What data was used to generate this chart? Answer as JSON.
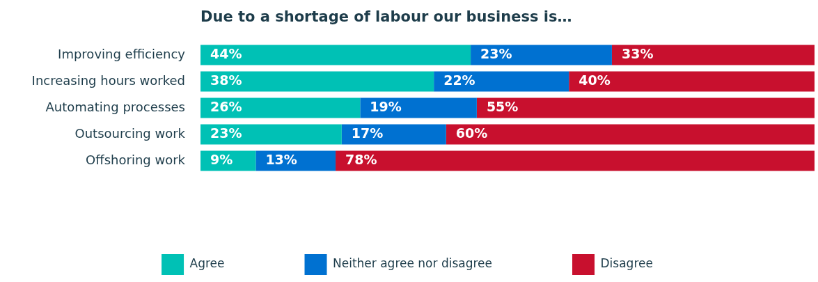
{
  "chart_data": {
    "type": "bar",
    "orientation": "horizontal",
    "stacked": true,
    "tick_labels": "y",
    "title": "Due to a shortage of labour our business is…",
    "categories": [
      "Improving efficiency",
      "Increasing hours worked",
      "Automating processes",
      "Outsourcing work",
      "Offshoring work"
    ],
    "series": [
      {
        "name": "Agree",
        "color": "#00c1b5",
        "values": [
          44,
          38,
          26,
          23,
          9
        ],
        "value_labels": [
          "44%",
          "38%",
          "26%",
          "23%",
          "9%"
        ]
      },
      {
        "name": "Neither agree nor disagree",
        "color": "#0071d1",
        "values": [
          23,
          22,
          19,
          17,
          13
        ],
        "value_labels": [
          "23%",
          "22%",
          "19%",
          "17%",
          "13%"
        ]
      },
      {
        "name": "Disagree",
        "color": "#c8102e",
        "values": [
          33,
          40,
          55,
          60,
          78
        ],
        "value_labels": [
          "33%",
          "40%",
          "55%",
          "60%",
          "78%"
        ]
      }
    ],
    "legend": "bottom"
  }
}
